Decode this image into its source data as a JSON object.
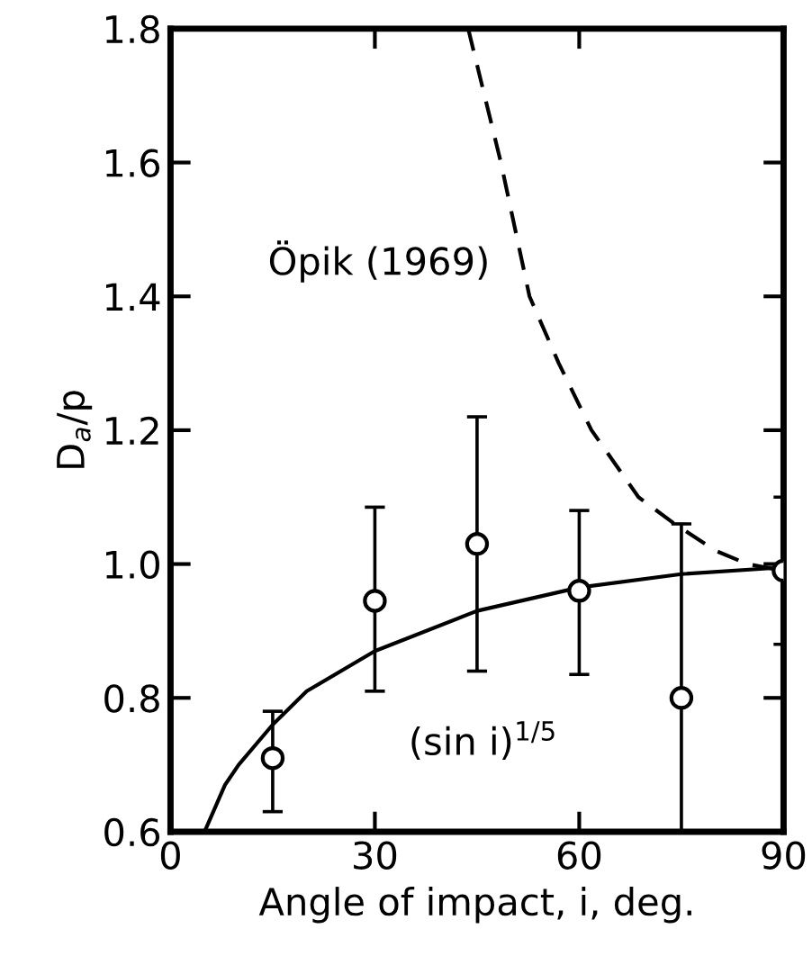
{
  "chart_data": {
    "type": "scatter",
    "xlabel": "Angle of impact, i, deg.",
    "ylabel": "D$_{a}$/p",
    "xlim": [
      0,
      90
    ],
    "ylim": [
      0.6,
      1.8
    ],
    "xticks": [
      0,
      30,
      60,
      90
    ],
    "yticks": [
      {
        "value": 0.6,
        "label": "0.6"
      },
      {
        "value": 0.8,
        "label": "0.8"
      },
      {
        "value": 1.0,
        "label": "1.0"
      },
      {
        "value": 1.2,
        "label": "1.2"
      },
      {
        "value": 1.4,
        "label": "1.4"
      },
      {
        "value": 1.6,
        "label": "1.6"
      },
      {
        "value": 1.8,
        "label": "1.8"
      }
    ],
    "grid": false,
    "legend": false,
    "series": [
      {
        "color": "#000000",
        "marker": "circle",
        "x": [
          15,
          30,
          45,
          60,
          75,
          90
        ],
        "values": [
          0.71,
          0.945,
          1.03,
          0.96,
          0.8,
          0.99
        ],
        "errors": [
          [
            0.63,
            0.78
          ],
          [
            0.81,
            1.085
          ],
          [
            0.84,
            1.22
          ],
          [
            0.835,
            1.08
          ],
          [
            0.6,
            1.06
          ],
          [
            0.88,
            1.1
          ]
        ]
      },
      {
        "type": "line",
        "color": "#000000",
        "line_style": "solid",
        "x": [
          5,
          8,
          10,
          15,
          20,
          30,
          45,
          60,
          75,
          90
        ],
        "values": [
          0.6,
          0.67,
          0.7,
          0.76,
          0.81,
          0.87,
          0.93,
          0.965,
          0.985,
          0.995
        ]
      },
      {
        "type": "line",
        "color": "#000000",
        "line_style": "dashed",
        "x": [
          43.7,
          48.5,
          52.7,
          57,
          61.8,
          68.7,
          74,
          80,
          84.7,
          90
        ],
        "values": [
          1.8,
          1.6,
          1.4,
          1.3,
          1.2,
          1.1,
          1.06,
          1.02,
          1.0,
          0.99
        ]
      }
    ],
    "annotations": [
      "Öpik (1969)",
      "(sin i)$^{1/5}$"
    ]
  }
}
